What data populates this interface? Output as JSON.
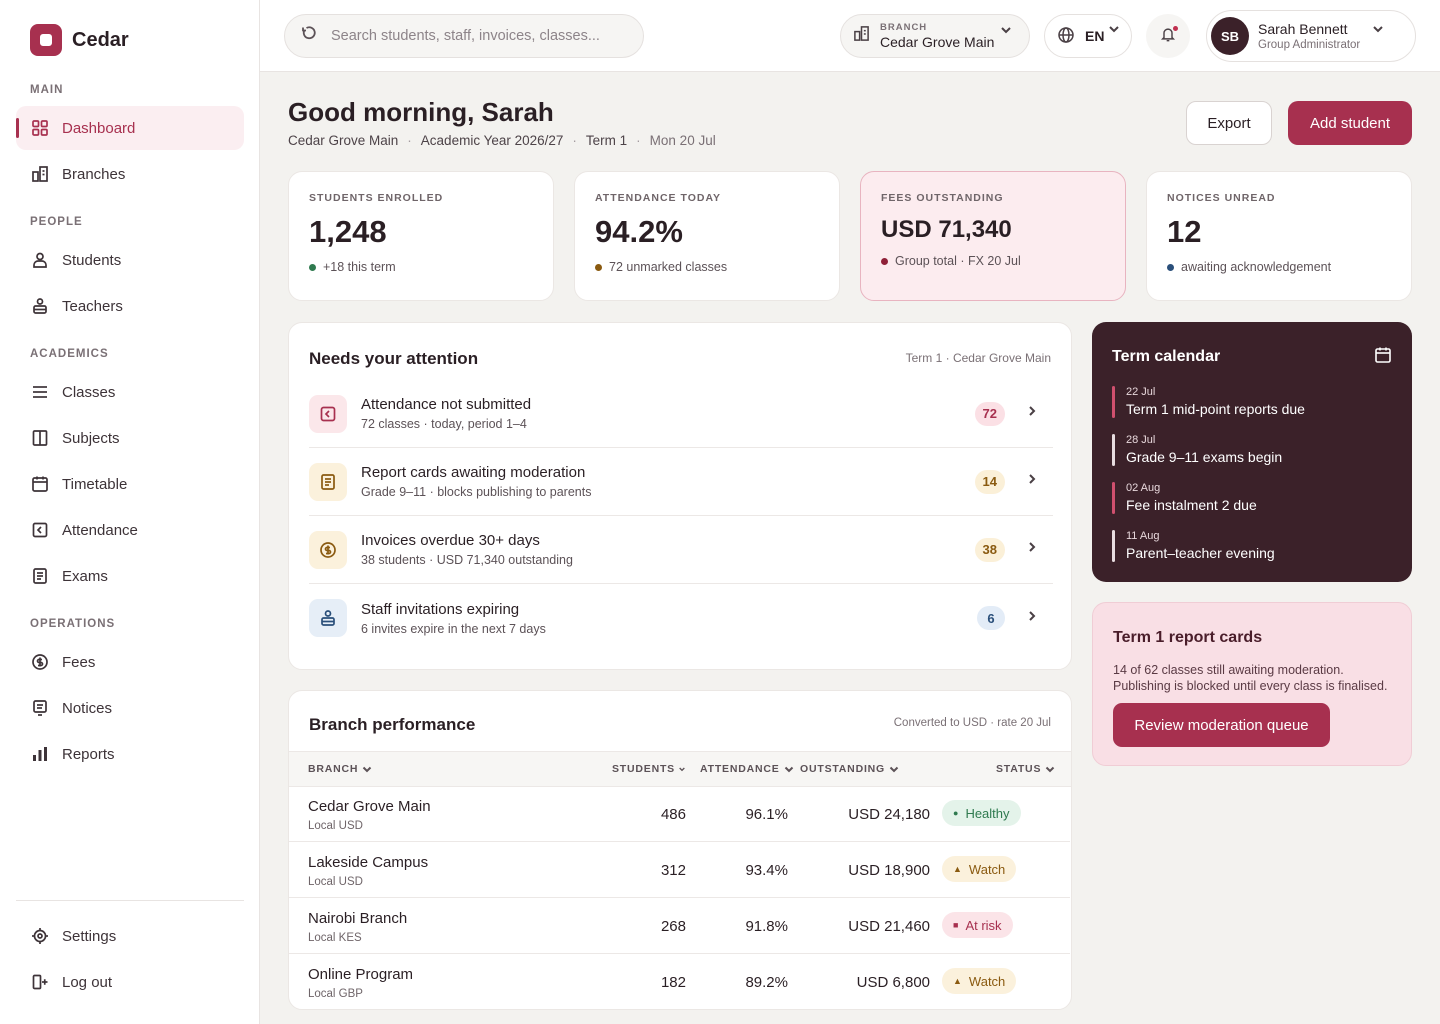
{
  "brand": {
    "name": "Cedar"
  },
  "sidebar": {
    "sections": [
      "MAIN",
      "PEOPLE",
      "ACADEMICS",
      "OPERATIONS"
    ],
    "items": [
      {
        "label": "Dashboard",
        "icon": "grid-icon"
      },
      {
        "label": "Branches",
        "icon": "building-icon"
      },
      {
        "label": "Students",
        "icon": "user-icon"
      },
      {
        "label": "Teachers",
        "icon": "teacher-icon"
      },
      {
        "label": "Classes",
        "icon": "list-icon"
      },
      {
        "label": "Subjects",
        "icon": "book-icon"
      },
      {
        "label": "Timetable",
        "icon": "calendar-icon"
      },
      {
        "label": "Attendance",
        "icon": "attendance-icon"
      },
      {
        "label": "Exams",
        "icon": "document-icon"
      },
      {
        "label": "Fees",
        "icon": "coin-icon"
      },
      {
        "label": "Notices",
        "icon": "notice-icon"
      },
      {
        "label": "Reports",
        "icon": "bar-chart-icon"
      }
    ],
    "footer": [
      {
        "label": "Settings",
        "icon": "settings-icon"
      },
      {
        "label": "Log out",
        "icon": "logout-icon"
      }
    ]
  },
  "topbar": {
    "search_placeholder": "Search students, staff, invoices, classes...",
    "branch_label": "BRANCH",
    "branch_value": "Cedar Grove Main",
    "language": "EN",
    "user": {
      "initials": "SB",
      "name": "Sarah Bennett",
      "role": "Group Administrator"
    }
  },
  "header": {
    "greeting": "Good morning, Sarah",
    "crumbs": [
      "Cedar Grove Main",
      "Academic Year 2026/27",
      "Term 1",
      "Mon 20 Jul"
    ],
    "export_label": "Export",
    "add_label": "Add student"
  },
  "stats": [
    {
      "label": "STUDENTS ENROLLED",
      "value": "1,248",
      "sub": "+18 this term",
      "dot": "#2f7a4f"
    },
    {
      "label": "ATTENDANCE TODAY",
      "value": "94.2%",
      "sub": "72 unmarked classes",
      "dot": "#8a5a10"
    },
    {
      "label": "FEES OUTSTANDING",
      "value": "USD 71,340",
      "sub": "Group total · FX 20 Jul",
      "dot": "#8f2038"
    },
    {
      "label": "NOTICES UNREAD",
      "value": "12",
      "sub": "awaiting acknowledgement",
      "dot": "#2a4f7a"
    }
  ],
  "attention": {
    "title": "Needs your attention",
    "meta": "Term 1 · Cedar Grove Main",
    "items": [
      {
        "title": "Attendance not submitted",
        "sub": "72 classes · today, period 1–4",
        "count": "72"
      },
      {
        "title": "Report cards awaiting moderation",
        "sub": "Grade 9–11 · blocks publishing to parents",
        "count": "14"
      },
      {
        "title": "Invoices overdue 30+ days",
        "sub": "38 students · USD 71,340 outstanding",
        "count": "38"
      },
      {
        "title": "Staff invitations expiring",
        "sub": "6 invites expire in the next 7 days",
        "count": "6"
      }
    ]
  },
  "calendar": {
    "title": "Term calendar",
    "events": [
      {
        "date": "22 Jul",
        "title": "Term 1 mid-point reports due"
      },
      {
        "date": "28 Jul",
        "title": "Grade 9–11 exams begin"
      },
      {
        "date": "02 Aug",
        "title": "Fee instalment 2 due"
      },
      {
        "date": "11 Aug",
        "title": "Parent–teacher evening"
      }
    ]
  },
  "report_cards": {
    "title": "Term 1 report cards",
    "text": "14 of 62 classes still awaiting moderation. Publishing is blocked until every class is finalised.",
    "button": "Review moderation queue"
  },
  "branch_perf": {
    "title": "Branch performance",
    "meta": "Converted to USD · rate 20 Jul",
    "columns": [
      "BRANCH",
      "STUDENTS",
      "ATTENDANCE",
      "OUTSTANDING",
      "STATUS"
    ],
    "rows": [
      {
        "name": "Cedar Grove Main",
        "local": "Local USD",
        "students": "486",
        "attendance": "96.1%",
        "outstanding": "USD 24,180",
        "status": "Healthy"
      },
      {
        "name": "Lakeside Campus",
        "local": "Local USD",
        "students": "312",
        "attendance": "93.4%",
        "outstanding": "USD 18,900",
        "status": "Watch"
      },
      {
        "name": "Nairobi Branch",
        "local": "Local KES",
        "students": "268",
        "attendance": "91.8%",
        "outstanding": "USD 21,460",
        "status": "At risk"
      },
      {
        "name": "Online Program",
        "local": "Local GBP",
        "students": "182",
        "attendance": "89.2%",
        "outstanding": "USD 6,800",
        "status": "Watch"
      }
    ]
  },
  "colors": {
    "accent": "#a7304f",
    "dark": "#3b2129"
  }
}
